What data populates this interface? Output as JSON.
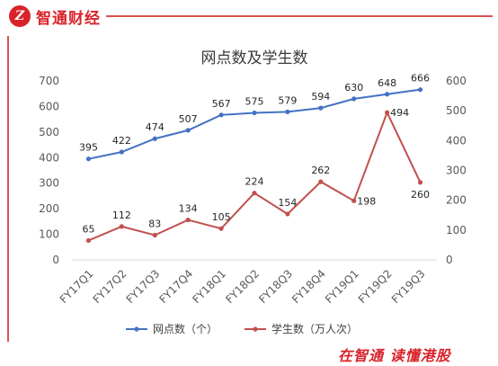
{
  "brand": {
    "logo_text": "智通财经",
    "slogan": "在智通 读懂港股"
  },
  "colors": {
    "brand_red": "#d9232a",
    "series_blue": "#4472c4",
    "series_red": "#c0504d"
  },
  "chart_data": {
    "type": "line",
    "title": "网点数及学生数",
    "categories": [
      "FY17Q1",
      "FY17Q2",
      "FY17Q3",
      "FY17Q4",
      "FY18Q1",
      "FY18Q2",
      "FY18Q3",
      "FY18Q4",
      "FY19Q1",
      "FY19Q2",
      "FY19Q3"
    ],
    "series": [
      {
        "name": "网点数（个）",
        "axis": "left",
        "color": "#4472c4",
        "values": [
          395,
          422,
          474,
          507,
          567,
          575,
          579,
          594,
          630,
          648,
          666
        ]
      },
      {
        "name": "学生数（万人次）",
        "axis": "right",
        "color": "#c0504d",
        "values": [
          65,
          112,
          83,
          134,
          105,
          224,
          154,
          262,
          198,
          494,
          260
        ]
      }
    ],
    "y_left": {
      "ylim": [
        0,
        700
      ],
      "ticks": [
        0,
        100,
        200,
        300,
        400,
        500,
        600,
        700
      ]
    },
    "y_right": {
      "ylim": [
        0,
        600
      ],
      "ticks": [
        0,
        100,
        200,
        300,
        400,
        500,
        600
      ]
    },
    "legend": "bottom",
    "grid": false
  }
}
